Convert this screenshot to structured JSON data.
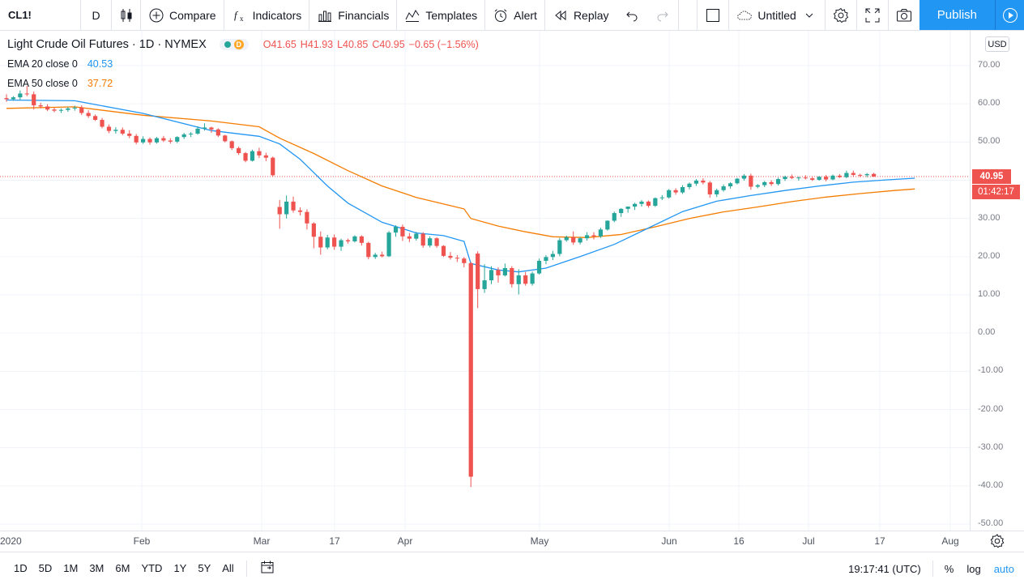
{
  "toolbar": {
    "symbol": "CL1!",
    "resolution": "D",
    "compare_label": "Compare",
    "indicators_label": "Indicators",
    "financials_label": "Financials",
    "templates_label": "Templates",
    "alert_label": "Alert",
    "replay_label": "Replay",
    "layout_name": "Untitled",
    "publish_label": "Publish"
  },
  "legend": {
    "title": "Light Crude Oil Futures · 1D · NYMEX",
    "badge_letter": "D",
    "open": "O41.65",
    "high": "H41.93",
    "low": "L40.85",
    "close": "C40.95",
    "change": "−0.65 (−1.56%)",
    "ema20_label": "EMA 20 close 0",
    "ema20_value": "40.53",
    "ema50_label": "EMA 50 close 0",
    "ema50_value": "37.72"
  },
  "price_scale": {
    "currency": "USD",
    "ticks": [
      "70.00",
      "60.00",
      "50.00",
      "40.00",
      "30.00",
      "20.00",
      "10.00",
      "0.00",
      "-10.00",
      "-20.00",
      "-30.00",
      "-40.00",
      "-50.00"
    ],
    "last_price": "40.95",
    "countdown": "01:42:17"
  },
  "time_axis": {
    "ticks": [
      "2020",
      "Feb",
      "Mar",
      "17",
      "Apr",
      "May",
      "Jun",
      "16",
      "Jul",
      "17",
      "Aug"
    ]
  },
  "bottom_bar": {
    "ranges": [
      "1D",
      "5D",
      "1M",
      "3M",
      "6M",
      "YTD",
      "1Y",
      "5Y",
      "All"
    ],
    "clock": "19:17:41 (UTC)",
    "percent_label": "%",
    "log_label": "log",
    "auto_label": "auto"
  },
  "colors": {
    "up": "#26a69a",
    "down": "#ef5350",
    "ema20": "#2196f3",
    "ema50": "#f57c00",
    "accent": "#2196f3"
  },
  "chart_data": {
    "type": "candlestick",
    "title": "Light Crude Oil Futures · 1D · NYMEX",
    "ylim": [
      -50,
      72
    ],
    "ohlc": [
      [
        61.5,
        62.5,
        60.5,
        61.2
      ],
      [
        61.2,
        62.0,
        60.8,
        61.7
      ],
      [
        61.7,
        63.5,
        61.0,
        62.7
      ],
      [
        62.7,
        64.7,
        62.0,
        62.5
      ],
      [
        62.5,
        63.2,
        58.5,
        59.6
      ],
      [
        59.6,
        60.3,
        58.8,
        59.3
      ],
      [
        59.3,
        59.9,
        58.1,
        58.5
      ],
      [
        58.5,
        59.0,
        57.8,
        58.2
      ],
      [
        58.2,
        58.8,
        57.6,
        58.4
      ],
      [
        58.4,
        59.2,
        57.9,
        58.8
      ],
      [
        58.8,
        59.5,
        58.2,
        59.0
      ],
      [
        59.0,
        59.6,
        57.1,
        57.6
      ],
      [
        57.6,
        58.3,
        56.3,
        56.8
      ],
      [
        56.8,
        57.2,
        55.5,
        55.8
      ],
      [
        55.8,
        56.3,
        53.6,
        54.0
      ],
      [
        54.0,
        54.6,
        52.3,
        52.9
      ],
      [
        52.9,
        53.9,
        52.2,
        53.2
      ],
      [
        53.2,
        53.8,
        51.8,
        52.2
      ],
      [
        52.2,
        53.1,
        51.0,
        51.6
      ],
      [
        51.6,
        52.1,
        49.4,
        49.9
      ],
      [
        49.9,
        51.5,
        49.5,
        50.8
      ],
      [
        50.8,
        51.2,
        49.3,
        49.9
      ],
      [
        49.9,
        51.3,
        49.6,
        51.0
      ],
      [
        51.0,
        51.6,
        50.0,
        50.4
      ],
      [
        50.4,
        51.0,
        49.6,
        50.1
      ],
      [
        50.1,
        51.5,
        49.7,
        51.3
      ],
      [
        51.3,
        52.4,
        50.8,
        52.0
      ],
      [
        52.0,
        52.6,
        51.3,
        52.2
      ],
      [
        52.2,
        54.1,
        51.9,
        53.5
      ],
      [
        53.5,
        54.9,
        53.0,
        53.8
      ],
      [
        53.8,
        54.0,
        52.4,
        53.3
      ],
      [
        53.3,
        53.6,
        51.3,
        51.7
      ],
      [
        51.7,
        51.9,
        49.9,
        50.2
      ],
      [
        50.2,
        50.4,
        47.9,
        48.4
      ],
      [
        48.4,
        48.8,
        46.6,
        47.1
      ],
      [
        47.1,
        47.4,
        44.7,
        45.1
      ],
      [
        45.1,
        48.0,
        44.9,
        47.6
      ],
      [
        47.6,
        48.5,
        45.8,
        46.5
      ],
      [
        46.5,
        47.2,
        45.0,
        45.9
      ],
      [
        45.9,
        46.2,
        40.9,
        41.3
      ],
      [
        33.0,
        34.8,
        27.3,
        31.1
      ],
      [
        31.1,
        36.0,
        30.0,
        34.4
      ],
      [
        34.4,
        35.7,
        31.5,
        32.1
      ],
      [
        32.1,
        32.9,
        30.8,
        31.7
      ],
      [
        31.7,
        32.4,
        27.1,
        28.7
      ],
      [
        28.7,
        29.0,
        22.2,
        25.2
      ],
      [
        25.2,
        26.6,
        20.5,
        22.4
      ],
      [
        22.4,
        25.7,
        21.9,
        25.0
      ],
      [
        25.0,
        25.8,
        21.8,
        22.6
      ],
      [
        22.6,
        24.7,
        21.5,
        24.3
      ],
      [
        24.3,
        24.7,
        23.4,
        24.0
      ],
      [
        24.0,
        25.6,
        23.7,
        25.3
      ],
      [
        25.3,
        25.6,
        22.9,
        23.6
      ],
      [
        23.6,
        23.9,
        19.3,
        19.9
      ],
      [
        19.9,
        21.0,
        19.4,
        20.5
      ],
      [
        20.5,
        21.3,
        19.8,
        20.1
      ],
      [
        20.1,
        26.7,
        19.9,
        26.3
      ],
      [
        26.3,
        28.2,
        25.2,
        27.8
      ],
      [
        27.8,
        28.4,
        24.1,
        25.3
      ],
      [
        25.3,
        26.2,
        23.8,
        24.7
      ],
      [
        24.7,
        26.5,
        24.2,
        26.0
      ],
      [
        26.0,
        26.4,
        22.3,
        22.9
      ],
      [
        22.9,
        25.3,
        22.4,
        24.8
      ],
      [
        24.8,
        25.1,
        22.3,
        22.8
      ],
      [
        22.8,
        23.0,
        19.9,
        20.2
      ],
      [
        20.2,
        21.2,
        19.2,
        19.7
      ],
      [
        19.7,
        20.4,
        18.6,
        19.5
      ],
      [
        19.5,
        19.9,
        17.2,
        18.3
      ],
      [
        18.3,
        18.6,
        -40.3,
        -37.6
      ],
      [
        20.8,
        21.4,
        6.5,
        11.5
      ],
      [
        11.5,
        18.0,
        10.5,
        13.8
      ],
      [
        13.8,
        17.5,
        12.8,
        16.5
      ],
      [
        16.5,
        17.2,
        13.2,
        15.1
      ],
      [
        15.1,
        18.2,
        14.8,
        17.0
      ],
      [
        17.0,
        17.5,
        11.9,
        12.8
      ],
      [
        12.8,
        16.7,
        10.1,
        15.1
      ],
      [
        15.1,
        16.0,
        12.4,
        12.9
      ],
      [
        12.9,
        16.1,
        12.4,
        15.6
      ],
      [
        15.6,
        19.5,
        15.3,
        18.9
      ],
      [
        18.9,
        20.4,
        18.0,
        19.9
      ],
      [
        19.9,
        21.5,
        19.1,
        20.7
      ],
      [
        20.7,
        24.9,
        20.1,
        24.3
      ],
      [
        24.3,
        25.5,
        23.9,
        25.1
      ],
      [
        25.1,
        26.6,
        23.1,
        23.7
      ],
      [
        23.7,
        25.2,
        23.2,
        24.8
      ],
      [
        24.8,
        26.4,
        24.2,
        25.6
      ],
      [
        25.6,
        26.4,
        24.5,
        25.3
      ],
      [
        25.3,
        27.6,
        24.9,
        27.1
      ],
      [
        27.1,
        29.5,
        26.8,
        29.4
      ],
      [
        29.4,
        31.8,
        29.0,
        31.4
      ],
      [
        31.4,
        32.7,
        30.4,
        32.5
      ],
      [
        32.5,
        33.1,
        31.5,
        33.1
      ],
      [
        33.1,
        34.1,
        32.2,
        33.8
      ],
      [
        33.8,
        34.8,
        33.1,
        34.4
      ],
      [
        34.4,
        34.7,
        32.8,
        33.3
      ],
      [
        33.3,
        35.5,
        33.0,
        35.3
      ],
      [
        35.3,
        36.1,
        34.8,
        35.5
      ],
      [
        35.5,
        37.7,
        35.2,
        37.4
      ],
      [
        37.4,
        37.9,
        36.2,
        36.8
      ],
      [
        36.8,
        38.7,
        36.4,
        38.2
      ],
      [
        38.2,
        39.4,
        37.6,
        39.1
      ],
      [
        39.1,
        40.3,
        38.5,
        39.9
      ],
      [
        39.9,
        40.5,
        38.9,
        39.4
      ],
      [
        39.4,
        39.8,
        35.4,
        36.3
      ],
      [
        36.3,
        37.8,
        35.6,
        37.4
      ],
      [
        37.4,
        38.9,
        37.0,
        38.4
      ],
      [
        38.4,
        39.5,
        37.8,
        39.2
      ],
      [
        39.2,
        40.6,
        38.9,
        40.4
      ],
      [
        40.4,
        41.6,
        39.9,
        41.2
      ],
      [
        41.2,
        41.7,
        37.5,
        38.3
      ],
      [
        38.3,
        39.0,
        37.9,
        38.7
      ],
      [
        38.7,
        39.8,
        38.2,
        39.5
      ],
      [
        39.5,
        40.0,
        38.5,
        39.0
      ],
      [
        39.0,
        40.7,
        38.6,
        40.3
      ],
      [
        40.3,
        41.2,
        39.8,
        40.9
      ],
      [
        40.9,
        41.5,
        40.3,
        40.6
      ],
      [
        40.6,
        41.0,
        39.9,
        40.7
      ],
      [
        40.7,
        41.3,
        40.2,
        40.5
      ],
      [
        40.5,
        41.0,
        39.8,
        40.1
      ],
      [
        40.1,
        41.1,
        39.9,
        40.9
      ],
      [
        40.9,
        41.4,
        39.7,
        40.2
      ],
      [
        40.2,
        41.5,
        40.0,
        41.2
      ],
      [
        41.2,
        41.6,
        40.6,
        40.8
      ],
      [
        40.8,
        42.5,
        40.5,
        41.9
      ],
      [
        41.9,
        42.5,
        40.9,
        41.4
      ],
      [
        41.4,
        41.7,
        40.8,
        41.3
      ],
      [
        41.3,
        41.9,
        40.8,
        41.6
      ],
      [
        41.65,
        41.93,
        40.85,
        40.95
      ]
    ],
    "ema20": [
      [
        0,
        61.0
      ],
      [
        10,
        60.8
      ],
      [
        20,
        57.5
      ],
      [
        30,
        53.0
      ],
      [
        37,
        51.5
      ],
      [
        40,
        49.5
      ],
      [
        43,
        45.5
      ],
      [
        47,
        38.5
      ],
      [
        50,
        34.0
      ],
      [
        55,
        29.0
      ],
      [
        60,
        26.2
      ],
      [
        64,
        25.5
      ],
      [
        67,
        24.0
      ],
      [
        68,
        18.2
      ],
      [
        72,
        16.5
      ],
      [
        75,
        16.0
      ],
      [
        79,
        17.0
      ],
      [
        84,
        20.0
      ],
      [
        89,
        23.2
      ],
      [
        94,
        27.5
      ],
      [
        99,
        31.8
      ],
      [
        104,
        34.5
      ],
      [
        109,
        36.0
      ],
      [
        114,
        37.3
      ],
      [
        119,
        38.5
      ],
      [
        124,
        39.5
      ],
      [
        129,
        40.1
      ],
      [
        133,
        40.53
      ]
    ],
    "ema50": [
      [
        0,
        58.8
      ],
      [
        10,
        59.2
      ],
      [
        20,
        57.0
      ],
      [
        30,
        55.5
      ],
      [
        37,
        54.0
      ],
      [
        40,
        51.0
      ],
      [
        45,
        47.0
      ],
      [
        50,
        42.5
      ],
      [
        55,
        38.5
      ],
      [
        60,
        35.5
      ],
      [
        67,
        32.5
      ],
      [
        68,
        30.0
      ],
      [
        72,
        28.0
      ],
      [
        76,
        26.5
      ],
      [
        80,
        25.2
      ],
      [
        85,
        25.0
      ],
      [
        90,
        25.8
      ],
      [
        95,
        27.8
      ],
      [
        100,
        30.0
      ],
      [
        105,
        31.7
      ],
      [
        110,
        33.0
      ],
      [
        115,
        34.4
      ],
      [
        120,
        35.6
      ],
      [
        125,
        36.5
      ],
      [
        130,
        37.3
      ],
      [
        133,
        37.72
      ]
    ]
  }
}
